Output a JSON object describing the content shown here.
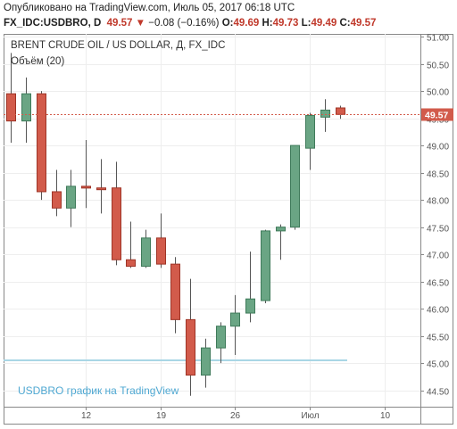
{
  "header": {
    "published": "Опубликовано на TradingView.com, Июль 05, 2017 06:18 UTC",
    "symbol": "FX_IDC:USDBRO",
    "interval": "D",
    "last": "49.57",
    "arrow": "▼",
    "change": "−0.08 (−0.16%)",
    "o_label": "O:",
    "o_value": "49.69",
    "h_label": "H:",
    "h_value": "49.73",
    "l_label": "L:",
    "l_value": "49.49",
    "c_label": "C:",
    "c_value": "49.57"
  },
  "colors": {
    "up": "#6aa584",
    "down": "#d25b4b",
    "up_border": "#3f7a5a",
    "down_border": "#9e3426",
    "price_line": "#d25b4b",
    "volume": "#a9d6e5",
    "watermark": "#4fa8d2"
  },
  "chart_data": {
    "type": "candlestick",
    "title": "BRENT CRUDE OIL / US DOLLAR, Д, FX_IDC",
    "volume_label": "Объём (20)",
    "watermark": "USDBRO график на TradingView",
    "last_price_label": "49.57",
    "last_price": 49.57,
    "ylim": [
      44.2,
      51.05
    ],
    "y_ticks": [
      "44.50",
      "45.00",
      "45.50",
      "46.00",
      "46.50",
      "47.00",
      "47.50",
      "48.00",
      "48.50",
      "49.00",
      "49.50",
      "50.00",
      "50.50",
      "51.00"
    ],
    "x_ticks": [
      {
        "index": 5,
        "label": "12"
      },
      {
        "index": 10,
        "label": "19"
      },
      {
        "index": 15,
        "label": "26"
      },
      {
        "index": 20,
        "label": "Июл"
      },
      {
        "index": 25,
        "label": "10"
      }
    ],
    "x_range": [
      -0.5,
      27.4
    ],
    "candles": [
      {
        "i": 0,
        "o": 49.95,
        "h": 50.7,
        "l": 49.05,
        "c": 49.45
      },
      {
        "i": 1,
        "o": 49.45,
        "h": 50.25,
        "l": 49.05,
        "c": 49.95
      },
      {
        "i": 2,
        "o": 49.95,
        "h": 50.0,
        "l": 48.0,
        "c": 48.15
      },
      {
        "i": 3,
        "o": 48.15,
        "h": 48.55,
        "l": 47.7,
        "c": 47.85
      },
      {
        "i": 4,
        "o": 47.85,
        "h": 48.55,
        "l": 47.5,
        "c": 48.25
      },
      {
        "i": 5,
        "o": 48.25,
        "h": 49.1,
        "l": 47.85,
        "c": 48.22
      },
      {
        "i": 6,
        "o": 48.22,
        "h": 48.75,
        "l": 47.75,
        "c": 48.2
      },
      {
        "i": 7,
        "o": 48.22,
        "h": 48.7,
        "l": 46.8,
        "c": 46.9
      },
      {
        "i": 8,
        "o": 46.9,
        "h": 47.6,
        "l": 46.75,
        "c": 46.78
      },
      {
        "i": 9,
        "o": 46.78,
        "h": 47.45,
        "l": 46.75,
        "c": 47.3
      },
      {
        "i": 10,
        "o": 47.3,
        "h": 47.75,
        "l": 46.75,
        "c": 46.82
      },
      {
        "i": 11,
        "o": 46.82,
        "h": 46.95,
        "l": 45.55,
        "c": 45.8
      },
      {
        "i": 12,
        "o": 45.8,
        "h": 46.55,
        "l": 44.4,
        "c": 44.78
      },
      {
        "i": 13,
        "o": 44.78,
        "h": 45.45,
        "l": 44.55,
        "c": 45.28
      },
      {
        "i": 14,
        "o": 45.28,
        "h": 45.75,
        "l": 45.0,
        "c": 45.68
      },
      {
        "i": 15,
        "o": 45.68,
        "h": 46.25,
        "l": 45.15,
        "c": 45.92
      },
      {
        "i": 16,
        "o": 45.92,
        "h": 47.05,
        "l": 45.75,
        "c": 46.18
      },
      {
        "i": 17,
        "o": 46.15,
        "h": 47.45,
        "l": 46.1,
        "c": 47.43
      },
      {
        "i": 18,
        "o": 47.43,
        "h": 47.55,
        "l": 46.9,
        "c": 47.5
      },
      {
        "i": 19,
        "o": 47.5,
        "h": 49.0,
        "l": 47.45,
        "c": 49.0
      },
      {
        "i": 20,
        "o": 48.95,
        "h": 49.6,
        "l": 48.55,
        "c": 49.55
      },
      {
        "i": 21,
        "o": 49.52,
        "h": 49.85,
        "l": 49.25,
        "c": 49.65
      },
      {
        "i": 22,
        "o": 49.69,
        "h": 49.73,
        "l": 49.49,
        "c": 49.57
      }
    ],
    "volume": [
      {
        "i": 0,
        "v": 1
      },
      {
        "i": 22,
        "v": 1
      }
    ]
  }
}
